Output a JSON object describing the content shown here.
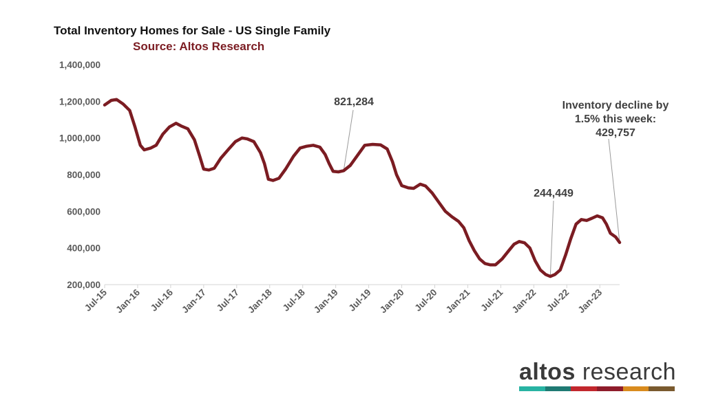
{
  "chart_data": {
    "type": "line",
    "title": "Total Inventory Homes for Sale - US Single Family",
    "subtitle": "Source: Altos Research",
    "xlabel": "",
    "ylabel": "",
    "ylim": [
      200000,
      1400000
    ],
    "yticks": [
      {
        "value": 200000,
        "label": "200,000"
      },
      {
        "value": 400000,
        "label": "400,000"
      },
      {
        "value": 600000,
        "label": "600,000"
      },
      {
        "value": 800000,
        "label": "800,000"
      },
      {
        "value": 1000000,
        "label": "1,000,000"
      },
      {
        "value": 1200000,
        "label": "1,200,000"
      },
      {
        "value": 1400000,
        "label": "1,400,000"
      }
    ],
    "xticks": [
      {
        "value": 2015.5,
        "label": "Jul-15"
      },
      {
        "value": 2016.0,
        "label": "Jan-16"
      },
      {
        "value": 2016.5,
        "label": "Jul-16"
      },
      {
        "value": 2017.0,
        "label": "Jan-17"
      },
      {
        "value": 2017.5,
        "label": "Jul-17"
      },
      {
        "value": 2018.0,
        "label": "Jan-18"
      },
      {
        "value": 2018.5,
        "label": "Jul-18"
      },
      {
        "value": 2019.0,
        "label": "Jan-19"
      },
      {
        "value": 2019.5,
        "label": "Jul-19"
      },
      {
        "value": 2020.0,
        "label": "Jan-20"
      },
      {
        "value": 2020.5,
        "label": "Jul-20"
      },
      {
        "value": 2021.0,
        "label": "Jan-21"
      },
      {
        "value": 2021.5,
        "label": "Jul-21"
      },
      {
        "value": 2022.0,
        "label": "Jan-22"
      },
      {
        "value": 2022.5,
        "label": "Jul-22"
      },
      {
        "value": 2023.0,
        "label": "Jan-23"
      }
    ],
    "xlim": [
      2015.5,
      2023.3
    ],
    "grid": false,
    "legend": "none",
    "series": [
      {
        "color": "#7b1c22",
        "points": [
          [
            2015.5,
            1180000
          ],
          [
            2015.6,
            1205000
          ],
          [
            2015.68,
            1210000
          ],
          [
            2015.78,
            1185000
          ],
          [
            2015.88,
            1150000
          ],
          [
            2015.96,
            1060000
          ],
          [
            2016.04,
            960000
          ],
          [
            2016.1,
            935000
          ],
          [
            2016.2,
            945000
          ],
          [
            2016.28,
            960000
          ],
          [
            2016.38,
            1020000
          ],
          [
            2016.48,
            1060000
          ],
          [
            2016.58,
            1080000
          ],
          [
            2016.66,
            1065000
          ],
          [
            2016.76,
            1050000
          ],
          [
            2016.86,
            990000
          ],
          [
            2016.94,
            900000
          ],
          [
            2017.0,
            830000
          ],
          [
            2017.08,
            825000
          ],
          [
            2017.16,
            835000
          ],
          [
            2017.26,
            890000
          ],
          [
            2017.38,
            940000
          ],
          [
            2017.48,
            980000
          ],
          [
            2017.58,
            1000000
          ],
          [
            2017.66,
            995000
          ],
          [
            2017.76,
            980000
          ],
          [
            2017.86,
            920000
          ],
          [
            2017.92,
            860000
          ],
          [
            2017.98,
            775000
          ],
          [
            2018.05,
            768000
          ],
          [
            2018.14,
            780000
          ],
          [
            2018.24,
            830000
          ],
          [
            2018.36,
            900000
          ],
          [
            2018.46,
            945000
          ],
          [
            2018.56,
            955000
          ],
          [
            2018.66,
            960000
          ],
          [
            2018.76,
            950000
          ],
          [
            2018.84,
            910000
          ],
          [
            2018.9,
            860000
          ],
          [
            2018.96,
            818000
          ],
          [
            2019.04,
            815000
          ],
          [
            2019.12,
            821284
          ],
          [
            2019.22,
            850000
          ],
          [
            2019.34,
            910000
          ],
          [
            2019.44,
            960000
          ],
          [
            2019.56,
            965000
          ],
          [
            2019.68,
            962000
          ],
          [
            2019.78,
            940000
          ],
          [
            2019.86,
            870000
          ],
          [
            2019.92,
            800000
          ],
          [
            2020.0,
            740000
          ],
          [
            2020.1,
            728000
          ],
          [
            2020.18,
            725000
          ],
          [
            2020.28,
            748000
          ],
          [
            2020.36,
            738000
          ],
          [
            2020.46,
            700000
          ],
          [
            2020.56,
            650000
          ],
          [
            2020.66,
            600000
          ],
          [
            2020.76,
            570000
          ],
          [
            2020.86,
            545000
          ],
          [
            2020.94,
            510000
          ],
          [
            2021.02,
            440000
          ],
          [
            2021.1,
            385000
          ],
          [
            2021.18,
            340000
          ],
          [
            2021.26,
            315000
          ],
          [
            2021.34,
            308000
          ],
          [
            2021.42,
            308000
          ],
          [
            2021.52,
            340000
          ],
          [
            2021.62,
            385000
          ],
          [
            2021.7,
            420000
          ],
          [
            2021.78,
            435000
          ],
          [
            2021.86,
            428000
          ],
          [
            2021.94,
            400000
          ],
          [
            2022.02,
            330000
          ],
          [
            2022.1,
            280000
          ],
          [
            2022.18,
            255000
          ],
          [
            2022.25,
            244449
          ],
          [
            2022.32,
            255000
          ],
          [
            2022.4,
            280000
          ],
          [
            2022.48,
            360000
          ],
          [
            2022.56,
            450000
          ],
          [
            2022.64,
            530000
          ],
          [
            2022.72,
            555000
          ],
          [
            2022.8,
            550000
          ],
          [
            2022.88,
            562000
          ],
          [
            2022.96,
            575000
          ],
          [
            2023.04,
            565000
          ],
          [
            2023.1,
            530000
          ],
          [
            2023.16,
            480000
          ],
          [
            2023.24,
            460000
          ],
          [
            2023.3,
            429757
          ]
        ]
      }
    ],
    "annotations": [
      {
        "lines": [
          "821,284"
        ],
        "x": 2019.12,
        "y": 821284
      },
      {
        "lines": [
          "244,449"
        ],
        "x": 2022.25,
        "y": 244449
      },
      {
        "lines": [
          "Inventory decline by",
          "1.5% this week:",
          "429,757"
        ],
        "x": 2023.3,
        "y": 429757
      }
    ]
  },
  "brand": {
    "line_color": "#7b1c22",
    "subtitle_color": "#7b1c22",
    "axis_color": "#d4d4d4",
    "logo_word1": "altos",
    "logo_word2": "research",
    "logo_bar_colors": [
      "#28b3a3",
      "#1f7a73",
      "#c2272d",
      "#8e1c2b",
      "#d98b1e",
      "#7a5a2e"
    ]
  }
}
